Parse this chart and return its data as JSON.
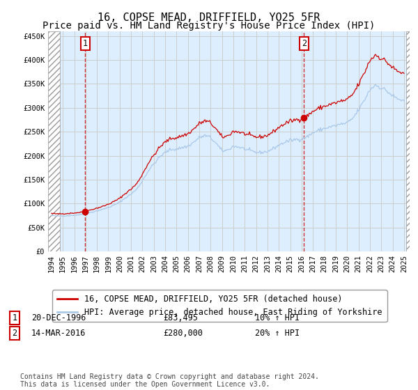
{
  "title": "16, COPSE MEAD, DRIFFIELD, YO25 5FR",
  "subtitle": "Price paid vs. HM Land Registry's House Price Index (HPI)",
  "ylim": [
    0,
    460000
  ],
  "yticks": [
    0,
    50000,
    100000,
    150000,
    200000,
    250000,
    300000,
    350000,
    400000,
    450000
  ],
  "ytick_labels": [
    "£0",
    "£50K",
    "£100K",
    "£150K",
    "£200K",
    "£250K",
    "£300K",
    "£350K",
    "£400K",
    "£450K"
  ],
  "xlim_start": 1993.7,
  "xlim_end": 2025.5,
  "xticks": [
    1994,
    1995,
    1996,
    1997,
    1998,
    1999,
    2000,
    2001,
    2002,
    2003,
    2004,
    2005,
    2006,
    2007,
    2008,
    2009,
    2010,
    2011,
    2012,
    2013,
    2014,
    2015,
    2016,
    2017,
    2018,
    2019,
    2020,
    2021,
    2022,
    2023,
    2024,
    2025
  ],
  "sale1_date": 1996.97,
  "sale1_price": 83495,
  "sale2_date": 2016.21,
  "sale2_price": 280000,
  "hpi_line_color": "#aac8e8",
  "price_line_color": "#cc0000",
  "dot_color": "#cc0000",
  "grid_color": "#cccccc",
  "background_plot": "#ddeeff",
  "vline_color": "#cc0000",
  "legend_line1": "16, COPSE MEAD, DRIFFIELD, YO25 5FR (detached house)",
  "legend_line2": "HPI: Average price, detached house, East Riding of Yorkshire",
  "annotation1_date": "20-DEC-1996",
  "annotation1_price": "£83,495",
  "annotation1_hpi": "10% ↑ HPI",
  "annotation2_date": "14-MAR-2016",
  "annotation2_price": "£280,000",
  "annotation2_hpi": "20% ↑ HPI",
  "footer": "Contains HM Land Registry data © Crown copyright and database right 2024.\nThis data is licensed under the Open Government Licence v3.0.",
  "title_fontsize": 11,
  "subtitle_fontsize": 10,
  "tick_fontsize": 7.5,
  "legend_fontsize": 8.5,
  "annotation_fontsize": 8.5,
  "footer_fontsize": 7
}
